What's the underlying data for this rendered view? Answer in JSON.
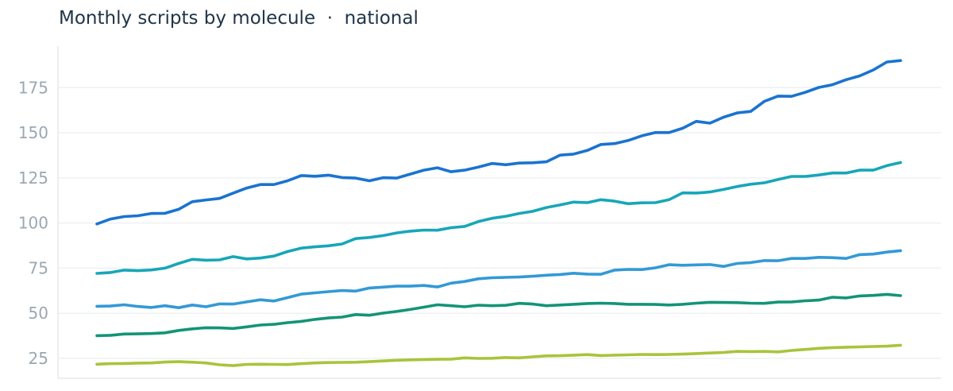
{
  "title": "Monthly scripts by molecule  ·  national",
  "chart_data": {
    "type": "line",
    "title": "Monthly scripts by molecule  ·  national",
    "xlabel": "",
    "ylabel": "",
    "ylim": [
      14,
      198
    ],
    "y_ticks": [
      25,
      50,
      75,
      100,
      125,
      150,
      175
    ],
    "grid": true,
    "x": [
      1,
      2,
      3,
      4,
      5,
      6,
      7,
      8,
      9,
      10,
      11,
      12,
      13,
      14,
      15,
      16,
      17,
      18,
      19,
      20,
      21,
      22,
      23,
      24,
      25,
      26,
      27,
      28,
      29,
      30,
      31,
      32,
      33,
      34,
      35,
      36,
      37,
      38,
      39,
      40,
      41,
      42,
      43,
      44,
      45,
      46,
      47,
      48,
      49,
      50,
      51,
      52,
      53,
      54,
      55,
      56,
      57,
      58,
      59,
      60
    ],
    "series": [
      {
        "color": "#1a73d0",
        "values": [
          99.5,
          102.2,
          103.6,
          104.0,
          105.3,
          105.4,
          107.6,
          111.8,
          112.8,
          113.6,
          116.5,
          119.4,
          121.3,
          121.3,
          123.4,
          126.3,
          125.9,
          126.5,
          125.2,
          124.9,
          123.4,
          125.1,
          124.9,
          127.1,
          129.3,
          130.6,
          128.4,
          129.3,
          131.0,
          133.0,
          132.3,
          133.2,
          133.4,
          133.9,
          137.6,
          138.2,
          140.2,
          143.5,
          144.0,
          145.7,
          148.3,
          150.1,
          150.1,
          152.5,
          156.3,
          155.3,
          158.6,
          161.0,
          161.8,
          167.4,
          170.3,
          170.2,
          172.4,
          175.1,
          176.6,
          179.4,
          181.5,
          184.8,
          189.2,
          190.0
        ]
      },
      {
        "color": "#17a6b8",
        "values": [
          72.1,
          72.6,
          73.9,
          73.6,
          74.0,
          75.0,
          77.6,
          79.9,
          79.4,
          79.6,
          81.4,
          80.1,
          80.6,
          81.7,
          84.2,
          86.1,
          86.8,
          87.4,
          88.4,
          91.4,
          92.0,
          93.0,
          94.5,
          95.5,
          96.1,
          96.0,
          97.4,
          98.1,
          100.8,
          102.6,
          103.7,
          105.3,
          106.5,
          108.6,
          110.0,
          111.6,
          111.3,
          112.9,
          112.1,
          110.7,
          111.2,
          111.3,
          112.9,
          116.7,
          116.6,
          117.2,
          118.6,
          120.2,
          121.5,
          122.3,
          124.1,
          125.8,
          125.8,
          126.6,
          127.7,
          127.7,
          129.3,
          129.3,
          131.8,
          133.5
        ]
      },
      {
        "color": "#3399d6",
        "values": [
          53.9,
          54.0,
          54.7,
          53.8,
          53.2,
          54.2,
          53.1,
          54.6,
          53.6,
          55.2,
          55.1,
          56.3,
          57.5,
          56.8,
          58.7,
          60.6,
          61.3,
          62.0,
          62.6,
          62.3,
          64.0,
          64.5,
          65.0,
          65.0,
          65.4,
          64.6,
          66.7,
          67.6,
          69.1,
          69.7,
          69.9,
          70.1,
          70.5,
          71.1,
          71.5,
          72.2,
          71.7,
          71.6,
          73.9,
          74.3,
          74.2,
          75.2,
          76.9,
          76.6,
          76.8,
          77.0,
          76.0,
          77.6,
          78.1,
          79.2,
          79.1,
          80.4,
          80.4,
          81.0,
          80.8,
          80.4,
          82.5,
          82.8,
          83.9,
          84.7
        ]
      },
      {
        "color": "#139477",
        "values": [
          37.6,
          37.8,
          38.5,
          38.6,
          38.8,
          39.2,
          40.5,
          41.4,
          42.0,
          41.9,
          41.6,
          42.5,
          43.5,
          43.9,
          44.8,
          45.5,
          46.6,
          47.4,
          47.9,
          49.3,
          48.9,
          50.1,
          51.0,
          52.1,
          53.4,
          54.7,
          54.2,
          53.6,
          54.5,
          54.2,
          54.4,
          55.5,
          55.1,
          54.2,
          54.6,
          55.0,
          55.4,
          55.6,
          55.4,
          55.0,
          55.0,
          54.9,
          54.6,
          55.0,
          55.6,
          56.1,
          56.0,
          55.9,
          55.6,
          55.5,
          56.2,
          56.3,
          56.9,
          57.3,
          58.9,
          58.5,
          59.6,
          59.9,
          60.5,
          59.8
        ]
      },
      {
        "color": "#a8c43b",
        "values": [
          21.8,
          22.1,
          22.2,
          22.4,
          22.5,
          23.0,
          23.2,
          22.9,
          22.5,
          21.5,
          21.0,
          21.7,
          21.8,
          21.7,
          21.6,
          22.1,
          22.5,
          22.7,
          22.8,
          22.9,
          23.2,
          23.6,
          24.0,
          24.2,
          24.4,
          24.5,
          24.6,
          25.3,
          25.0,
          25.1,
          25.5,
          25.3,
          25.9,
          26.4,
          26.5,
          26.8,
          27.1,
          26.6,
          26.8,
          27.0,
          27.2,
          27.1,
          27.2,
          27.4,
          27.7,
          28.0,
          28.3,
          28.9,
          28.8,
          28.9,
          28.6,
          29.4,
          30.0,
          30.6,
          31.0,
          31.2,
          31.4,
          31.6,
          31.8,
          32.3
        ]
      }
    ]
  }
}
